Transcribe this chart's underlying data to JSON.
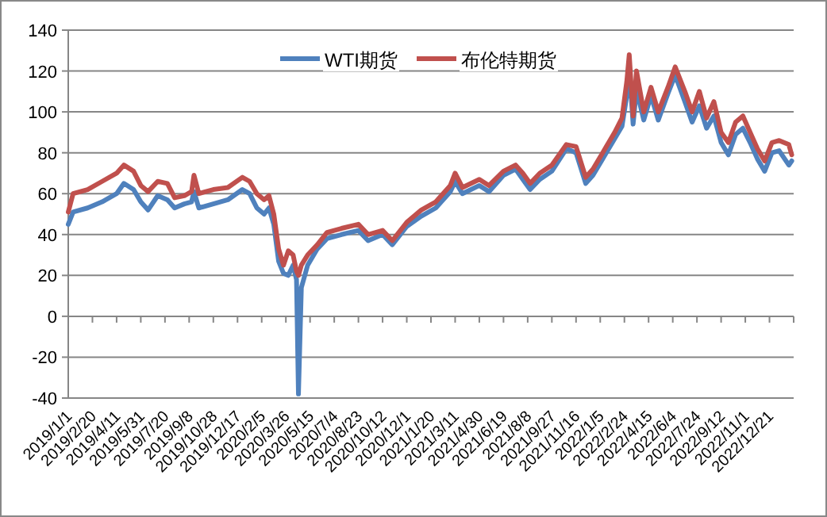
{
  "chart_data": {
    "type": "line",
    "x": [
      "2019-01-01",
      "2019-01-11",
      "2019-02-10",
      "2019-03-12",
      "2019-04-11",
      "2019-04-26",
      "2019-05-16",
      "2019-05-31",
      "2019-06-15",
      "2019-07-05",
      "2019-07-25",
      "2019-08-09",
      "2019-08-29",
      "2019-09-13",
      "2019-09-18",
      "2019-09-28",
      "2019-10-28",
      "2019-11-27",
      "2019-12-27",
      "2020-01-11",
      "2020-01-26",
      "2020-02-10",
      "2020-02-20",
      "2020-03-01",
      "2020-03-11",
      "2020-03-21",
      "2020-03-31",
      "2020-04-10",
      "2020-04-17",
      "2020-04-21",
      "2020-04-27",
      "2020-05-10",
      "2020-05-30",
      "2020-06-19",
      "2020-07-19",
      "2020-08-23",
      "2020-09-12",
      "2020-10-12",
      "2020-11-01",
      "2020-12-01",
      "2020-12-31",
      "2021-01-30",
      "2021-03-01",
      "2021-03-11",
      "2021-03-26",
      "2021-04-30",
      "2021-05-20",
      "2021-06-19",
      "2021-07-14",
      "2021-07-29",
      "2021-08-13",
      "2021-09-02",
      "2021-09-27",
      "2021-10-27",
      "2021-11-16",
      "2021-12-06",
      "2021-12-21",
      "2022-01-10",
      "2022-02-04",
      "2022-02-19",
      "2022-03-01",
      "2022-03-06",
      "2022-03-14",
      "2022-03-21",
      "2022-04-05",
      "2022-04-20",
      "2022-05-05",
      "2022-05-25",
      "2022-06-09",
      "2022-06-29",
      "2022-07-14",
      "2022-07-29",
      "2022-08-13",
      "2022-08-28",
      "2022-09-12",
      "2022-09-27",
      "2022-10-12",
      "2022-10-27",
      "2022-11-11",
      "2022-11-26",
      "2022-12-11",
      "2022-12-26",
      "2023-01-10",
      "2023-01-30",
      "2023-02-05"
    ],
    "series": [
      {
        "name": "WTI期货",
        "color": "#4f81bd",
        "values": [
          45,
          51,
          53,
          56,
          60,
          65,
          62,
          56,
          52,
          59,
          57,
          53,
          55,
          56,
          61,
          53,
          55,
          57,
          62,
          60,
          53,
          50,
          53,
          45,
          27,
          21,
          20,
          25,
          18,
          -38,
          14,
          25,
          33,
          38,
          40,
          42,
          37,
          40,
          35,
          44,
          49,
          53,
          61,
          66,
          60,
          64,
          61,
          69,
          72,
          67,
          62,
          67,
          71,
          82,
          80,
          65,
          69,
          77,
          87,
          93,
          108,
          122,
          94,
          111,
          96,
          108,
          96,
          109,
          118,
          105,
          95,
          103,
          92,
          98,
          85,
          79,
          89,
          92,
          85,
          77,
          71,
          80,
          81,
          74,
          76
        ]
      },
      {
        "name": "布伦特期货",
        "color": "#c0504d",
        "values": [
          51,
          60,
          62,
          66,
          70,
          74,
          71,
          64,
          61,
          66,
          65,
          58,
          59,
          61,
          69,
          60,
          62,
          63,
          68,
          66,
          60,
          57,
          59,
          50,
          33,
          25,
          32,
          30,
          22,
          20,
          25,
          30,
          35,
          41,
          43,
          45,
          40,
          42,
          37,
          46,
          52,
          56,
          64,
          70,
          63,
          67,
          64,
          71,
          74,
          70,
          65,
          70,
          74,
          84,
          83,
          68,
          72,
          80,
          90,
          97,
          115,
          128,
          98,
          120,
          100,
          112,
          100,
          112,
          122,
          110,
          100,
          110,
          97,
          105,
          90,
          85,
          95,
          98,
          90,
          82,
          76,
          85,
          86,
          84,
          79
        ]
      }
    ],
    "xlim": [
      "2019-01-01",
      "2023-02-09"
    ],
    "xticks": [
      {
        "value": "2019-01-01",
        "label": "2019/1/1"
      },
      {
        "value": "2019-02-20",
        "label": "2019/2/20"
      },
      {
        "value": "2019-04-11",
        "label": "2019/4/11"
      },
      {
        "value": "2019-05-31",
        "label": "2019/5/31"
      },
      {
        "value": "2019-07-20",
        "label": "2019/7/20"
      },
      {
        "value": "2019-09-08",
        "label": "2019/9/8"
      },
      {
        "value": "2019-10-28",
        "label": "2019/10/28"
      },
      {
        "value": "2019-12-17",
        "label": "2019/12/17"
      },
      {
        "value": "2020-02-05",
        "label": "2020/2/5"
      },
      {
        "value": "2020-03-26",
        "label": "2020/3/26"
      },
      {
        "value": "2020-05-15",
        "label": "2020/5/15"
      },
      {
        "value": "2020-07-04",
        "label": "2020/7/4"
      },
      {
        "value": "2020-08-23",
        "label": "2020/8/23"
      },
      {
        "value": "2020-10-12",
        "label": "2020/10/12"
      },
      {
        "value": "2020-12-01",
        "label": "2020/12/1"
      },
      {
        "value": "2021-01-20",
        "label": "2021/1/20"
      },
      {
        "value": "2021-03-11",
        "label": "2021/3/11"
      },
      {
        "value": "2021-04-30",
        "label": "2021/4/30"
      },
      {
        "value": "2021-06-19",
        "label": "2021/6/19"
      },
      {
        "value": "2021-08-08",
        "label": "2021/8/8"
      },
      {
        "value": "2021-09-27",
        "label": "2021/9/27"
      },
      {
        "value": "2021-11-16",
        "label": "2021/11/16"
      },
      {
        "value": "2022-01-05",
        "label": "2022/1/5"
      },
      {
        "value": "2022-02-24",
        "label": "2022/2/24"
      },
      {
        "value": "2022-04-15",
        "label": "2022/4/15"
      },
      {
        "value": "2022-06-04",
        "label": "2022/6/4"
      },
      {
        "value": "2022-07-24",
        "label": "2022/7/24"
      },
      {
        "value": "2022-09-12",
        "label": "2022/9/12"
      },
      {
        "value": "2022-11-01",
        "label": "2022/11/1"
      },
      {
        "value": "2022-12-21",
        "label": "2022/12/21"
      },
      {
        "value": "2023-02-09",
        "label": null
      }
    ],
    "ylim": [
      -40,
      140
    ],
    "yticks": [
      -40,
      -20,
      0,
      20,
      40,
      60,
      80,
      100,
      120,
      140
    ],
    "grid": "y",
    "legend": "top"
  }
}
